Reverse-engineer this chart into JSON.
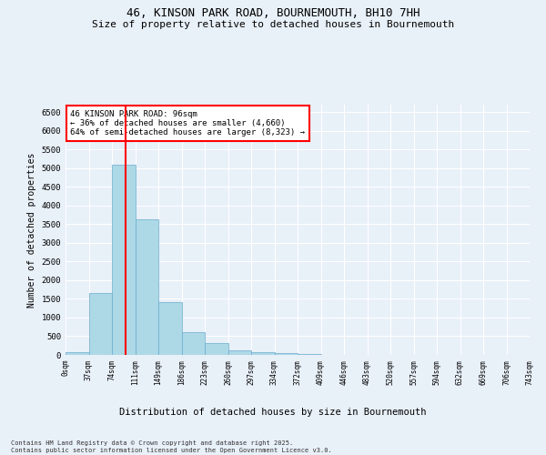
{
  "title1": "46, KINSON PARK ROAD, BOURNEMOUTH, BH10 7HH",
  "title2": "Size of property relative to detached houses in Bournemouth",
  "xlabel": "Distribution of detached houses by size in Bournemouth",
  "ylabel": "Number of detached properties",
  "bar_values": [
    70,
    1650,
    5100,
    3620,
    1420,
    620,
    310,
    130,
    75,
    50,
    30,
    0,
    0,
    0,
    0,
    0,
    0,
    0,
    0,
    0
  ],
  "tick_labels": [
    "0sqm",
    "37sqm",
    "74sqm",
    "111sqm",
    "149sqm",
    "186sqm",
    "223sqm",
    "260sqm",
    "297sqm",
    "334sqm",
    "372sqm",
    "409sqm",
    "446sqm",
    "483sqm",
    "520sqm",
    "557sqm",
    "594sqm",
    "632sqm",
    "669sqm",
    "706sqm",
    "743sqm"
  ],
  "bar_color": "#add8e6",
  "bar_edge_color": "#6aacce",
  "vline_color": "red",
  "annotation_text": "46 KINSON PARK ROAD: 96sqm\n← 36% of detached houses are smaller (4,660)\n64% of semi-detached houses are larger (8,323) →",
  "annotation_box_color": "white",
  "annotation_box_edge": "red",
  "ylim": [
    0,
    6700
  ],
  "yticks": [
    0,
    500,
    1000,
    1500,
    2000,
    2500,
    3000,
    3500,
    4000,
    4500,
    5000,
    5500,
    6000,
    6500
  ],
  "footnote": "Contains HM Land Registry data © Crown copyright and database right 2025.\nContains public sector information licensed under the Open Government Licence v3.0.",
  "bg_color": "#e8f0f8",
  "grid_color": "white",
  "title_fontsize": 9,
  "subtitle_fontsize": 8
}
